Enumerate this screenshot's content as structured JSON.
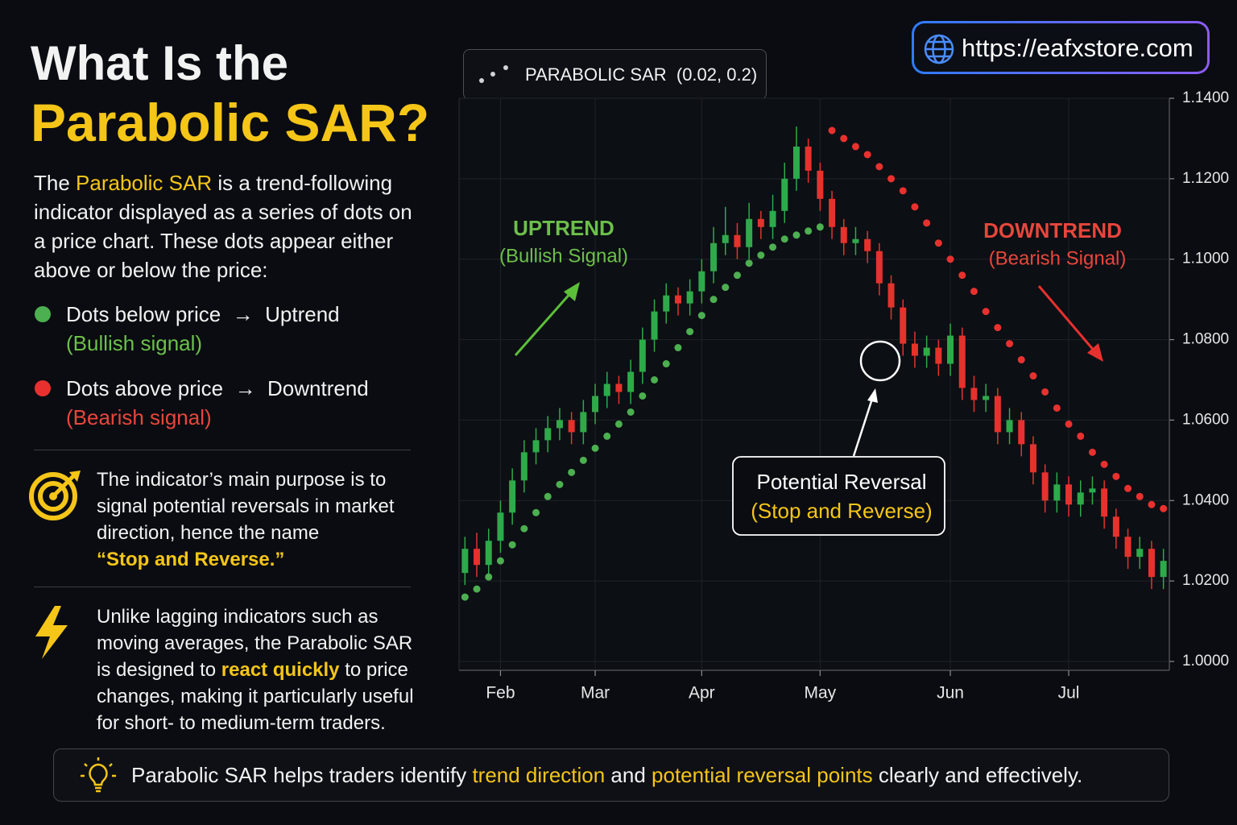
{
  "header": {
    "title_line1": "What Is the",
    "title_line2": "Parabolic SAR?"
  },
  "intro": [
    "The ",
    "Parabolic SAR",
    " is a trend-following indicator displayed as a series of dots on a price chart. These dots appear either above or below the price:"
  ],
  "bullets": [
    {
      "text": "Dots below price",
      "arrow": "→",
      "target": "Uptrend",
      "signal": "(Bullish signal)"
    },
    {
      "text": "Dots above price",
      "arrow": "→",
      "target": "Downtrend",
      "signal": "(Bearish signal)"
    }
  ],
  "note1": [
    "The indicator’s main purpose is to signal potential reversals in market direction, hence the name",
    "“Stop and Reverse.”"
  ],
  "note2": [
    "Unlike lagging indicators such as moving averages, the Parabolic SAR is designed to ",
    "react quickly",
    " to price changes, making it particularly useful for short- to medium-term traders."
  ],
  "footer": [
    "Parabolic SAR helps traders identify ",
    "trend direction",
    " and ",
    "potential reversal points",
    " clearly and effectively."
  ],
  "url": "https://eafxstore.com",
  "chart_data": {
    "type": "candlestick",
    "indicator_label": "PARABOLIC SAR  (0.02, 0.2)",
    "categories": [
      null,
      null,
      null,
      "Feb",
      null,
      null,
      null,
      null,
      null,
      null,
      null,
      "Mar",
      null,
      null,
      null,
      null,
      null,
      null,
      null,
      null,
      "Apr",
      null,
      null,
      null,
      null,
      null,
      null,
      null,
      null,
      null,
      "May",
      null,
      null,
      null,
      null,
      null,
      null,
      null,
      null,
      null,
      null,
      "Jun",
      null,
      null,
      null,
      null,
      null,
      null,
      null,
      null,
      null,
      "Jul",
      null,
      null,
      null,
      null,
      null,
      null,
      null,
      null
    ],
    "open": [
      1.022,
      1.028,
      1.024,
      1.03,
      1.037,
      1.045,
      1.052,
      1.055,
      1.058,
      1.06,
      1.057,
      1.062,
      1.066,
      1.069,
      1.067,
      1.072,
      1.08,
      1.087,
      1.091,
      1.089,
      1.092,
      1.097,
      1.104,
      1.106,
      1.103,
      1.11,
      1.108,
      1.112,
      1.12,
      1.128,
      1.122,
      1.115,
      1.108,
      1.104,
      1.105,
      1.102,
      1.094,
      1.088,
      1.079,
      1.076,
      1.078,
      1.074,
      1.081,
      1.068,
      1.065,
      1.066,
      1.057,
      1.06,
      1.054,
      1.047,
      1.04,
      1.044,
      1.039,
      1.042,
      1.043,
      1.036,
      1.031,
      1.026,
      1.028,
      1.021
    ],
    "high": [
      1.031,
      1.032,
      1.033,
      1.04,
      1.048,
      1.055,
      1.058,
      1.061,
      1.063,
      1.062,
      1.065,
      1.069,
      1.072,
      1.071,
      1.075,
      1.083,
      1.09,
      1.094,
      1.093,
      1.095,
      1.1,
      1.108,
      1.113,
      1.109,
      1.114,
      1.112,
      1.116,
      1.124,
      1.133,
      1.13,
      1.124,
      1.117,
      1.11,
      1.108,
      1.107,
      1.104,
      1.096,
      1.09,
      1.082,
      1.081,
      1.08,
      1.084,
      1.083,
      1.071,
      1.069,
      1.068,
      1.063,
      1.062,
      1.056,
      1.049,
      1.047,
      1.046,
      1.045,
      1.046,
      1.045,
      1.038,
      1.033,
      1.031,
      1.03,
      1.028
    ],
    "low": [
      1.019,
      1.021,
      1.021,
      1.027,
      1.034,
      1.042,
      1.049,
      1.052,
      1.055,
      1.054,
      1.054,
      1.059,
      1.063,
      1.064,
      1.064,
      1.069,
      1.077,
      1.084,
      1.086,
      1.086,
      1.089,
      1.094,
      1.101,
      1.1,
      1.1,
      1.105,
      1.105,
      1.109,
      1.117,
      1.119,
      1.112,
      1.105,
      1.101,
      1.101,
      1.099,
      1.091,
      1.085,
      1.076,
      1.073,
      1.073,
      1.071,
      1.071,
      1.065,
      1.062,
      1.062,
      1.054,
      1.054,
      1.051,
      1.044,
      1.037,
      1.037,
      1.036,
      1.036,
      1.039,
      1.033,
      1.028,
      1.023,
      1.023,
      1.018,
      1.018
    ],
    "close": [
      1.028,
      1.024,
      1.03,
      1.037,
      1.045,
      1.052,
      1.055,
      1.058,
      1.06,
      1.057,
      1.062,
      1.066,
      1.069,
      1.067,
      1.072,
      1.08,
      1.087,
      1.091,
      1.089,
      1.092,
      1.097,
      1.104,
      1.106,
      1.103,
      1.11,
      1.108,
      1.112,
      1.12,
      1.128,
      1.122,
      1.115,
      1.108,
      1.104,
      1.105,
      1.102,
      1.094,
      1.088,
      1.079,
      1.076,
      1.078,
      1.074,
      1.081,
      1.068,
      1.065,
      1.066,
      1.057,
      1.06,
      1.054,
      1.047,
      1.04,
      1.044,
      1.039,
      1.042,
      1.043,
      1.036,
      1.031,
      1.026,
      1.028,
      1.021,
      1.025
    ],
    "up_color": "#2eaa4a",
    "down_color": "#e5322d",
    "sar": [
      {
        "color": "#4caf50",
        "values": [
          1.016,
          1.018,
          1.021,
          1.025,
          1.029,
          1.033,
          1.037,
          1.041,
          1.044,
          1.047,
          1.05,
          1.053,
          1.056,
          1.059,
          1.062,
          1.066,
          1.07,
          1.074,
          1.078,
          1.082,
          1.086,
          1.09,
          1.093,
          1.096,
          1.099,
          1.101,
          1.103,
          1.105,
          1.106,
          1.107,
          1.108,
          null,
          null,
          null,
          null,
          null,
          null,
          null,
          null,
          null,
          null,
          null,
          null,
          null,
          null,
          null,
          null,
          null,
          null,
          null,
          null,
          null,
          null,
          null,
          null,
          null,
          null,
          null,
          null,
          null
        ]
      },
      {
        "color": "#e8312f",
        "values": [
          null,
          null,
          null,
          null,
          null,
          null,
          null,
          null,
          null,
          null,
          null,
          null,
          null,
          null,
          null,
          null,
          null,
          null,
          null,
          null,
          null,
          null,
          null,
          null,
          null,
          null,
          null,
          null,
          null,
          null,
          null,
          1.132,
          1.13,
          1.128,
          1.126,
          1.123,
          1.12,
          1.117,
          1.113,
          1.109,
          1.104,
          1.1,
          1.096,
          1.092,
          1.087,
          1.083,
          1.079,
          1.075,
          1.071,
          1.067,
          1.063,
          1.059,
          1.056,
          1.052,
          1.049,
          1.046,
          1.043,
          1.041,
          1.039,
          1.038
        ]
      }
    ],
    "ylim": [
      1.0,
      1.14
    ],
    "yticks": [
      {
        "value": 1.0,
        "label": "1.0000"
      },
      {
        "value": 1.02,
        "label": "1.0200"
      },
      {
        "value": 1.04,
        "label": "1.0400"
      },
      {
        "value": 1.06,
        "label": "1.0600"
      },
      {
        "value": 1.08,
        "label": "1.0800"
      },
      {
        "value": 1.1,
        "label": "1.1000"
      },
      {
        "value": 1.12,
        "label": "1.1200"
      },
      {
        "value": 1.14,
        "label": "1.1400"
      }
    ],
    "grid": true,
    "annotations": {
      "uptrend": "UPTREND",
      "uptrend_sub": "(Bullish Signal)",
      "downtrend": "DOWNTREND",
      "downtrend_sub": "(Bearish Signal)",
      "reversal": "Potential Reversal",
      "reversal_sub": "(Stop and Reverse)"
    }
  }
}
